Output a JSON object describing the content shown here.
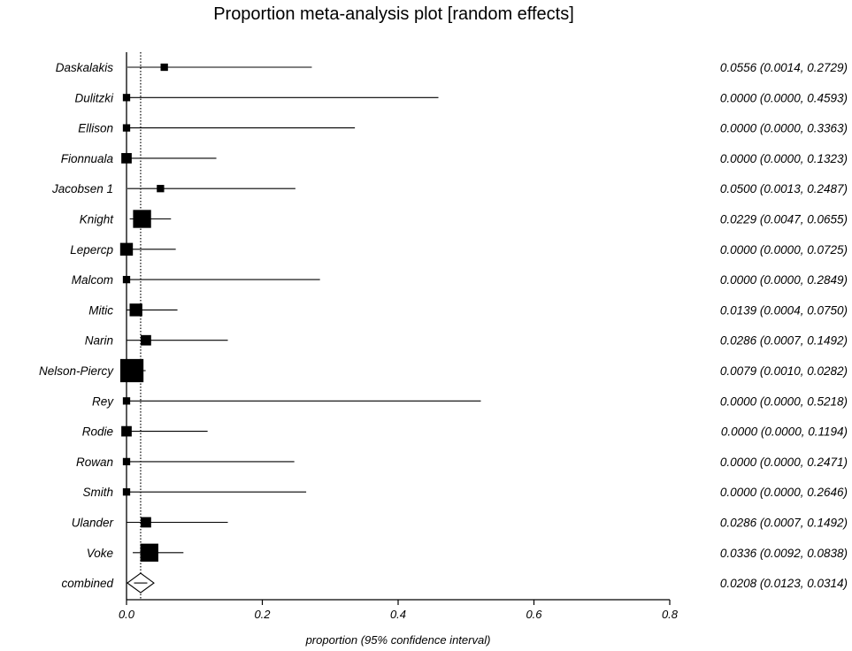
{
  "chart_data": {
    "type": "forest",
    "title": "Proportion meta-analysis plot [random effects]",
    "xlabel": "proportion (95% confidence interval)",
    "xlim": [
      0.0,
      0.8
    ],
    "xticks": [
      0.0,
      0.2,
      0.4,
      0.6,
      0.8
    ],
    "xtick_labels": [
      "0.0",
      "0.2",
      "0.4",
      "0.6",
      "0.8"
    ],
    "reference_line": 0.0208,
    "studies": [
      {
        "label": "Daskalakis",
        "estimate": 0.0556,
        "lower": 0.0014,
        "upper": 0.2729,
        "weight": 1,
        "ci_text": "0.0556 (0.0014, 0.2729)"
      },
      {
        "label": "Dulitzki",
        "estimate": 0.0,
        "lower": 0.0,
        "upper": 0.4593,
        "weight": 1,
        "ci_text": "0.0000 (0.0000, 0.4593)"
      },
      {
        "label": "Ellison",
        "estimate": 0.0,
        "lower": 0.0,
        "upper": 0.3363,
        "weight": 1,
        "ci_text": "0.0000 (0.0000, 0.3363)"
      },
      {
        "label": "Fionnuala",
        "estimate": 0.0,
        "lower": 0.0,
        "upper": 0.1323,
        "weight": 2,
        "ci_text": "0.0000 (0.0000, 0.1323)"
      },
      {
        "label": "Jacobsen 1",
        "estimate": 0.05,
        "lower": 0.0013,
        "upper": 0.2487,
        "weight": 1,
        "ci_text": "0.0500 (0.0013, 0.2487)"
      },
      {
        "label": "Knight",
        "estimate": 0.0229,
        "lower": 0.0047,
        "upper": 0.0655,
        "weight": 6,
        "ci_text": "0.0229 (0.0047, 0.0655)"
      },
      {
        "label": "Lepercp",
        "estimate": 0.0,
        "lower": 0.0,
        "upper": 0.0725,
        "weight": 3,
        "ci_text": "0.0000 (0.0000, 0.0725)"
      },
      {
        "label": "Malcom",
        "estimate": 0.0,
        "lower": 0.0,
        "upper": 0.2849,
        "weight": 1,
        "ci_text": "0.0000 (0.0000, 0.2849)"
      },
      {
        "label": "Mitic",
        "estimate": 0.0139,
        "lower": 0.0004,
        "upper": 0.075,
        "weight": 3,
        "ci_text": "0.0139 (0.0004, 0.0750)"
      },
      {
        "label": "Narin",
        "estimate": 0.0286,
        "lower": 0.0007,
        "upper": 0.1492,
        "weight": 2,
        "ci_text": "0.0286 (0.0007, 0.1492)"
      },
      {
        "label": "Nelson-Piercy",
        "estimate": 0.0079,
        "lower": 0.001,
        "upper": 0.0282,
        "weight": 10,
        "ci_text": "0.0079 (0.0010, 0.0282)"
      },
      {
        "label": "Rey",
        "estimate": 0.0,
        "lower": 0.0,
        "upper": 0.5218,
        "weight": 1,
        "ci_text": "0.0000 (0.0000, 0.5218)"
      },
      {
        "label": "Rodie",
        "estimate": 0.0,
        "lower": 0.0,
        "upper": 0.1194,
        "weight": 2,
        "ci_text": "0.0000 (0.0000, 0.1194)"
      },
      {
        "label": "Rowan",
        "estimate": 0.0,
        "lower": 0.0,
        "upper": 0.2471,
        "weight": 1,
        "ci_text": "0.0000 (0.0000, 0.2471)"
      },
      {
        "label": "Smith",
        "estimate": 0.0,
        "lower": 0.0,
        "upper": 0.2646,
        "weight": 1,
        "ci_text": "0.0000 (0.0000, 0.2646)"
      },
      {
        "label": "Ulander",
        "estimate": 0.0286,
        "lower": 0.0007,
        "upper": 0.1492,
        "weight": 2,
        "ci_text": "0.0286 (0.0007, 0.1492)"
      },
      {
        "label": "Voke",
        "estimate": 0.0336,
        "lower": 0.0092,
        "upper": 0.0838,
        "weight": 6,
        "ci_text": "0.0336 (0.0092, 0.0838)"
      }
    ],
    "combined": {
      "label": "combined",
      "estimate": 0.0208,
      "lower": 0.0123,
      "upper": 0.0314,
      "ci_text": "0.0208 (0.0123, 0.0314)"
    }
  }
}
